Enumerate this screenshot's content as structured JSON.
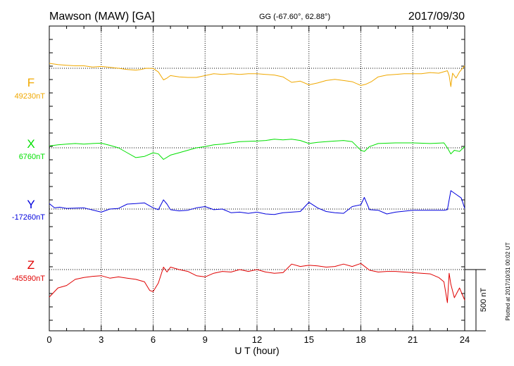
{
  "header": {
    "station": "Mawson (MAW)  [GA]",
    "coords": "GG (-67.60°,  62.88°)",
    "date": "2017/09/30"
  },
  "footer_note": "Plotted at 2017/10/31 00:02 UT",
  "scale_label": "500 nT",
  "colors": {
    "F": "#f0a800",
    "X": "#00e000",
    "Y": "#0000dd",
    "Z": "#e00000"
  },
  "chart_data": {
    "type": "line",
    "xlabel": "U T (hour)",
    "xlim": [
      0,
      24
    ],
    "xticks": [
      "0",
      "3",
      "6",
      "9",
      "12",
      "15",
      "18",
      "21",
      "24"
    ],
    "grid": true,
    "series": [
      {
        "name": "F",
        "baseline": "49230nT",
        "x": [
          0,
          0.5,
          1,
          1.5,
          2,
          2.5,
          3,
          3.5,
          4,
          4.5,
          5,
          5.3,
          5.6,
          6,
          6.3,
          6.6,
          6.8,
          7,
          7.5,
          8,
          8.5,
          9,
          9.5,
          10,
          10.5,
          11,
          11.5,
          12,
          12.5,
          13,
          13.5,
          14,
          14.5,
          15,
          15.5,
          16,
          16.5,
          17,
          17.5,
          18,
          18.3,
          18.6,
          19,
          19.5,
          20,
          20.5,
          21,
          21.5,
          22,
          22.5,
          23,
          23.1,
          23.2,
          23.3,
          23.5,
          23.7,
          24
        ],
        "values": [
          40,
          30,
          25,
          20,
          20,
          10,
          15,
          8,
          0,
          -10,
          -15,
          -10,
          0,
          -2,
          -30,
          -95,
          -80,
          -60,
          -70,
          -75,
          -75,
          -60,
          -45,
          -50,
          -45,
          -50,
          -45,
          -45,
          -50,
          -55,
          -70,
          -115,
          -105,
          -135,
          -120,
          -100,
          -90,
          -100,
          -110,
          -140,
          -130,
          -110,
          -70,
          -55,
          -50,
          -45,
          -45,
          -45,
          -35,
          -40,
          -20,
          -60,
          -150,
          -40,
          -80,
          -30,
          20
        ]
      },
      {
        "name": "X",
        "baseline": "6760nT",
        "x": [
          0,
          0.5,
          1,
          1.5,
          2,
          2.5,
          3,
          3.5,
          4,
          4.5,
          5,
          5.5,
          6,
          6.3,
          6.6,
          7,
          7.5,
          8,
          8.5,
          9,
          9.5,
          10,
          11,
          12,
          12.5,
          13,
          13.5,
          14,
          14.5,
          15,
          15.5,
          16,
          16.5,
          17,
          17.5,
          18,
          18.2,
          18.5,
          19,
          20,
          21,
          22,
          22.8,
          23,
          23.2,
          23.4,
          23.7,
          24
        ],
        "values": [
          15,
          25,
          30,
          35,
          30,
          35,
          38,
          20,
          0,
          -40,
          -80,
          -70,
          -40,
          -50,
          -95,
          -60,
          -40,
          -20,
          0,
          10,
          25,
          30,
          50,
          55,
          60,
          70,
          65,
          70,
          60,
          35,
          45,
          50,
          55,
          60,
          50,
          -20,
          -30,
          10,
          35,
          40,
          40,
          35,
          40,
          0,
          -50,
          -20,
          -30,
          10
        ]
      },
      {
        "name": "Y",
        "baseline": "-17260nT",
        "x": [
          0,
          0.3,
          0.6,
          1,
          2,
          3,
          3.5,
          4,
          4.5,
          5,
          5.5,
          6,
          6.3,
          6.6,
          6.8,
          7,
          7.5,
          8,
          8.5,
          9,
          9.5,
          10,
          10.5,
          11,
          11.5,
          12,
          12.5,
          13,
          13.5,
          14,
          14.5,
          15,
          15.5,
          16,
          16.5,
          17,
          17.5,
          18,
          18.2,
          18.5,
          19,
          19.5,
          20,
          21,
          22,
          22.8,
          23,
          23.2,
          23.5,
          23.8,
          24
        ],
        "values": [
          45,
          10,
          15,
          5,
          10,
          -25,
          0,
          5,
          40,
          45,
          50,
          10,
          -5,
          75,
          40,
          -5,
          -15,
          -10,
          10,
          20,
          -5,
          0,
          -30,
          -25,
          -35,
          -25,
          -40,
          -45,
          -30,
          -25,
          -20,
          55,
          10,
          -20,
          -30,
          -35,
          20,
          35,
          95,
          -5,
          -10,
          -40,
          -25,
          -10,
          -10,
          -10,
          -5,
          150,
          120,
          90,
          5
        ]
      },
      {
        "name": "Z",
        "baseline": "-45590nT",
        "x": [
          0,
          0.5,
          1,
          1.5,
          2,
          2.5,
          3,
          3.5,
          4,
          4.5,
          5,
          5.5,
          5.8,
          6,
          6.3,
          6.6,
          6.8,
          7,
          7.5,
          8,
          8.5,
          9,
          9.5,
          10,
          10.5,
          11,
          11.5,
          12,
          12.5,
          13,
          13.5,
          14,
          14.5,
          15,
          15.5,
          16,
          16.5,
          17,
          17.5,
          18,
          18.5,
          19,
          19.5,
          20,
          21,
          22,
          22.5,
          22.8,
          23,
          23.1,
          23.2,
          23.4,
          23.7,
          24
        ],
        "values": [
          -225,
          -150,
          -130,
          -80,
          -65,
          -55,
          -50,
          -70,
          -60,
          -70,
          -80,
          -100,
          -170,
          -180,
          -110,
          20,
          -20,
          20,
          0,
          -15,
          -50,
          -60,
          -30,
          -15,
          -20,
          0,
          -15,
          0,
          -20,
          -30,
          -25,
          45,
          25,
          35,
          30,
          20,
          25,
          45,
          25,
          50,
          -5,
          -20,
          -15,
          -15,
          -25,
          -35,
          -65,
          -100,
          -270,
          -30,
          -120,
          -230,
          -150,
          -250
        ]
      }
    ]
  }
}
